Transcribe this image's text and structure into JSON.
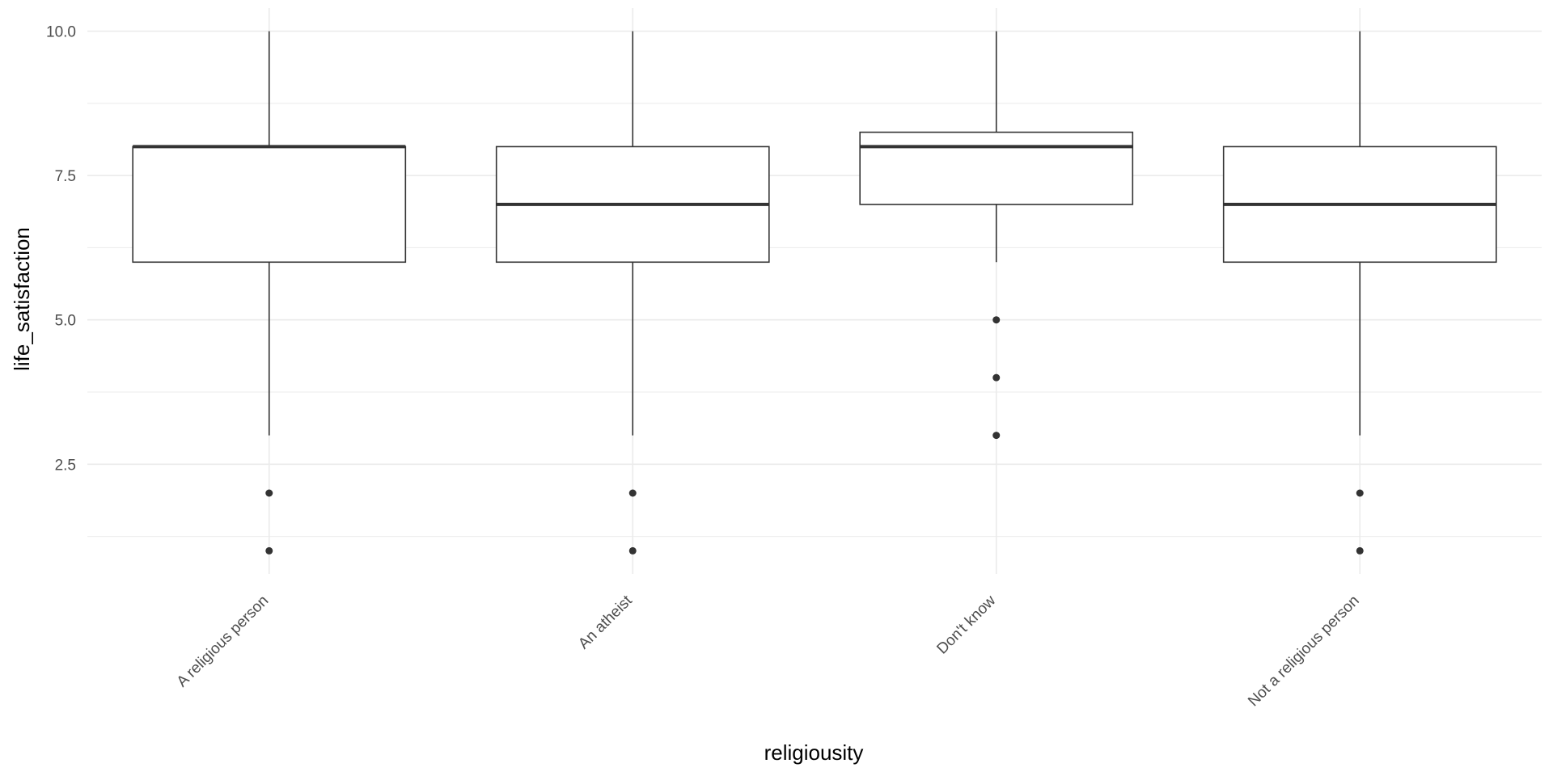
{
  "chart_data": {
    "type": "boxplot",
    "title": "",
    "xlabel": "religiousity",
    "ylabel": "life_satisfaction",
    "ylim": [
      0.6,
      10.4
    ],
    "y_ticks": [
      2.5,
      5.0,
      7.5,
      10.0
    ],
    "y_tick_labels": [
      "2.5",
      "5.0",
      "7.5",
      "10.0"
    ],
    "y_minor_ticks": [
      1.25,
      3.75,
      6.25,
      8.75
    ],
    "grid": true,
    "categories": [
      "A religious person",
      "An atheist",
      "Don't know",
      "Not a religious person"
    ],
    "boxes": [
      {
        "category": "A religious person",
        "whisker_low": 3,
        "q1": 6,
        "median": 8,
        "q3": 8,
        "whisker_high": 10,
        "outliers": [
          1,
          2
        ]
      },
      {
        "category": "An atheist",
        "whisker_low": 3,
        "q1": 6,
        "median": 7,
        "q3": 8,
        "whisker_high": 10,
        "outliers": [
          1,
          2
        ]
      },
      {
        "category": "Don't know",
        "whisker_low": 6,
        "q1": 7,
        "median": 8,
        "q3": 8.25,
        "whisker_high": 10,
        "outliers": [
          3,
          4,
          5
        ]
      },
      {
        "category": "Not a religious person",
        "whisker_low": 3,
        "q1": 6,
        "median": 7,
        "q3": 8,
        "whisker_high": 10,
        "outliers": [
          1,
          2
        ]
      }
    ],
    "colors": {
      "grid": "#ebebeb",
      "box_line": "#333333",
      "median": "#333333",
      "outlier": "#333333",
      "box_fill": "#ffffff"
    }
  }
}
